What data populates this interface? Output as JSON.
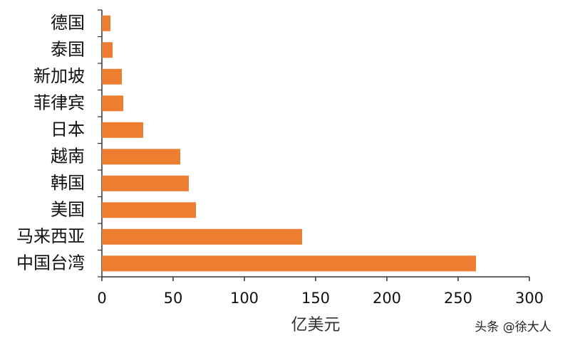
{
  "chart_data": {
    "type": "bar",
    "orientation": "horizontal",
    "categories": [
      "德国",
      "泰国",
      "新加坡",
      "菲律宾",
      "日本",
      "越南",
      "韩国",
      "美国",
      "马来西亚",
      "中国台湾"
    ],
    "values": [
      6,
      7.5,
      14,
      15,
      29,
      55,
      61,
      66,
      140.5,
      262.5
    ],
    "color": "#ed7d31",
    "xlabel": "亿美元",
    "xlim": [
      0,
      300
    ],
    "xticks": [
      0,
      50,
      100,
      150,
      200,
      250,
      300
    ],
    "watermark": "头条 @徐大人"
  }
}
